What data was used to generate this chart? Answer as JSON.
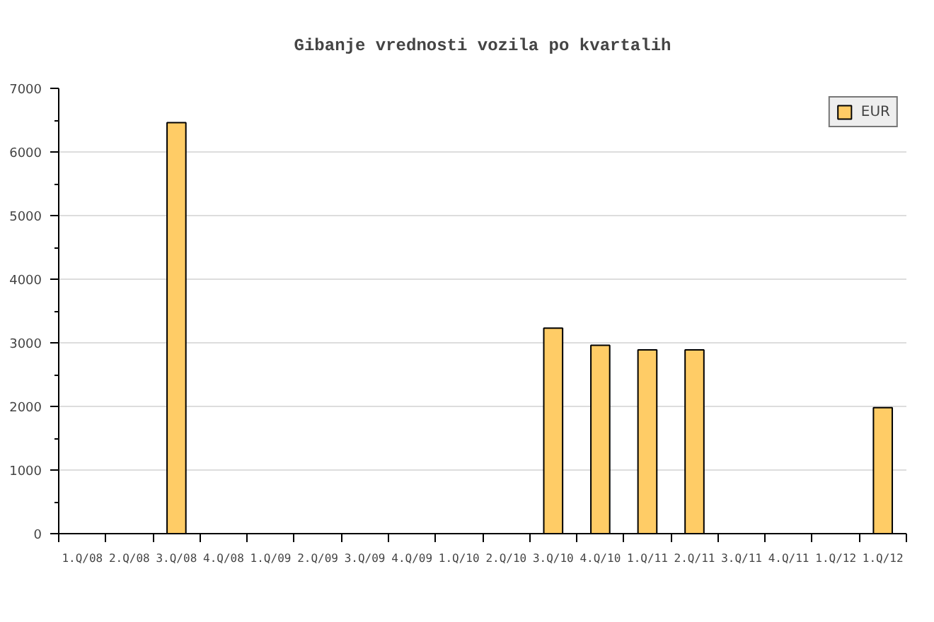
{
  "chart_data": {
    "type": "bar",
    "title": "Gibanje vrednosti vozila po kvartalih",
    "categories": [
      "1.Q/08",
      "2.Q/08",
      "3.Q/08",
      "4.Q/08",
      "1.Q/09",
      "2.Q/09",
      "3.Q/09",
      "4.Q/09",
      "1.Q/10",
      "2.Q/10",
      "3.Q/10",
      "4.Q/10",
      "1.Q/11",
      "2.Q/11",
      "3.Q/11",
      "4.Q/11",
      "1.Q/12",
      "1.Q/12"
    ],
    "series": [
      {
        "name": "EUR",
        "color": "#ffcc66",
        "values": [
          null,
          null,
          6460,
          null,
          null,
          null,
          null,
          null,
          null,
          null,
          3230,
          2960,
          2890,
          2890,
          null,
          null,
          null,
          1980
        ]
      }
    ],
    "ylim": [
      0,
      7000
    ],
    "yticks": [
      0,
      1000,
      2000,
      3000,
      4000,
      5000,
      6000,
      7000
    ],
    "grid": "y",
    "legend": "top right"
  }
}
